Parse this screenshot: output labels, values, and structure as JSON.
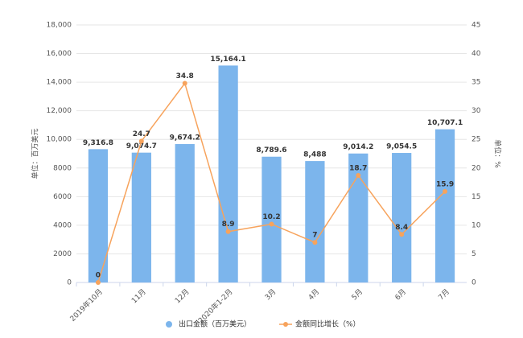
{
  "chart_data": {
    "type": "bar",
    "categories": [
      "2019年10月",
      "11月",
      "12月",
      "2020年1-2月",
      "3月",
      "4月",
      "5月",
      "6月",
      "7月"
    ],
    "y_label": "单位：百万美元",
    "y2_label": "单位：%",
    "ylim": [
      0,
      18000
    ],
    "yticks": [
      0,
      2000,
      4000,
      6000,
      8000,
      {
        "value": 10000,
        "label": "10,000"
      },
      {
        "value": 12000,
        "label": "12,000"
      },
      {
        "value": 14000,
        "label": "14,000"
      },
      {
        "value": 16000,
        "label": "16,000"
      },
      {
        "value": 18000,
        "label": "18,000"
      }
    ],
    "y2lim": [
      0,
      45
    ],
    "y2ticks": [
      0,
      5,
      10,
      15,
      20,
      25,
      30,
      35,
      40,
      45
    ],
    "grid": true,
    "legend": "bottom",
    "series": [
      {
        "name": "出口金额（百万美元）",
        "type": "bar",
        "color": "#7cb5ec",
        "values": [
          9316.8,
          9074.7,
          9674.2,
          15164.1,
          8789.6,
          8488,
          9014.2,
          9054.5,
          10707.1
        ],
        "value_labels": [
          "9,316.8",
          "9,074.7",
          "9,674.2",
          "15,164.1",
          "8,789.6",
          "8,488",
          "9,014.2",
          "9,054.5",
          "10,707.1"
        ]
      },
      {
        "name": "金额同比增长（%）",
        "type": "line",
        "axis": "y2",
        "color": "#f7a35c",
        "values": [
          0,
          24.7,
          34.8,
          8.9,
          10.2,
          7,
          18.7,
          8.4,
          15.9
        ]
      }
    ]
  }
}
